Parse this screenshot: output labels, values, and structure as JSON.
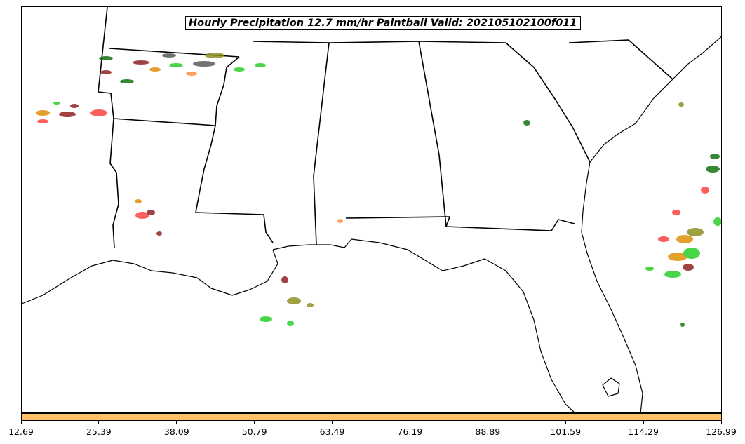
{
  "map": {
    "title": "Hourly Precipitation 12.7 mm/hr Paintball Valid: 202105102100f011",
    "region": "Southeastern United States / Gulf Coast",
    "colors": {
      "coast_line": "#000000",
      "background": "#ffffff"
    },
    "member_colors": [
      "#ff3b3b",
      "#e08a00",
      "#22cc22",
      "#0a6e0a",
      "#8b1a1a",
      "#555555",
      "#8a8a1a",
      "#ff8c3b"
    ]
  },
  "colorbar": {
    "color": "#ffc166",
    "ticks": [
      "12.69",
      "25.39",
      "38.09",
      "50.79",
      "63.49",
      "76.19",
      "88.89",
      "101.59",
      "114.29",
      "126.99"
    ]
  }
}
